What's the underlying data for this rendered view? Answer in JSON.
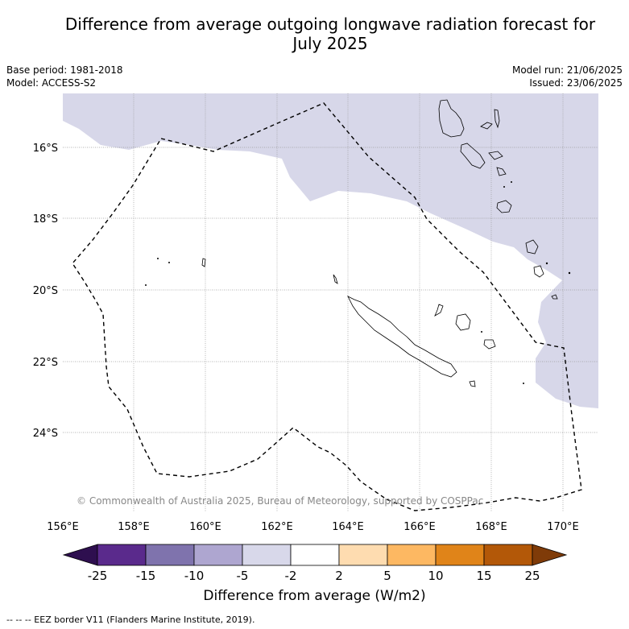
{
  "title_line1": "Difference from average outgoing longwave radiation forecast for",
  "title_line2": "July 2025",
  "meta_left": {
    "base_period": "Base period: 1981-2018",
    "model": "Model: ACCESS-S2"
  },
  "meta_right": {
    "model_run": "Model run: 21/06/2025",
    "issued": "Issued: 23/06/2025"
  },
  "map": {
    "lat_labels": [
      "16°S",
      "18°S",
      "20°S",
      "22°S",
      "24°S"
    ],
    "lon_labels": [
      "156°E",
      "158°E",
      "160°E",
      "162°E",
      "164°E",
      "166°E",
      "168°E",
      "170°E"
    ],
    "copyright": "© Commonwealth of Australia 2025, Bureau of Meteorology, supported by COSPPac",
    "colors": {
      "anomaly_minus2_to_minus5": "#d7d7e9",
      "coast": "#000000",
      "eez": "#000000"
    }
  },
  "colorbar": {
    "ticks": [
      "-25",
      "-15",
      "-10",
      "-5",
      "-2",
      "2",
      "5",
      "10",
      "15",
      "25"
    ],
    "colors": [
      "#2e0f4f",
      "#5a2a8c",
      "#7f73ad",
      "#aea6d0",
      "#d8d8ea",
      "#ffffff",
      "#fedcb0",
      "#fdb862",
      "#e08419",
      "#b35808",
      "#7f3b08"
    ],
    "label": "Difference from average (W/m2)"
  },
  "footer": "--  --  -- EEZ border V11 (Flanders Marine Institute, 2019)."
}
